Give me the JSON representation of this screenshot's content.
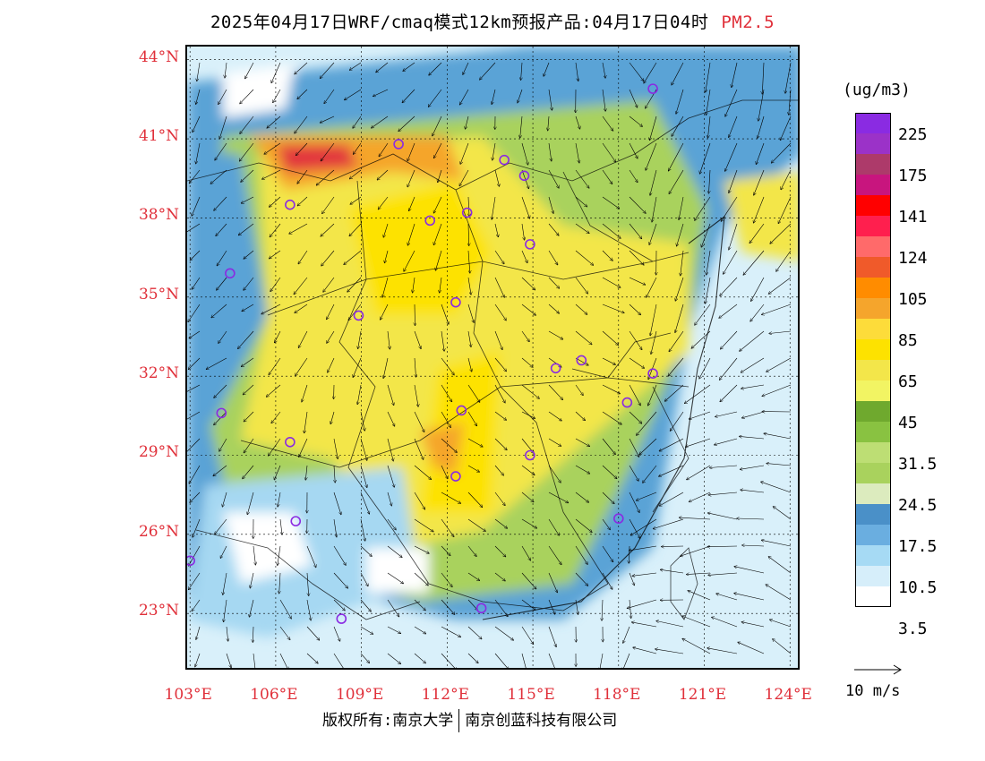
{
  "title": {
    "main": "2025年04月17日WRF/cmaq模式12km预报产品:04月17日04时",
    "variable": "PM2.5"
  },
  "map": {
    "lat_ticks": [
      "44°N",
      "41°N",
      "38°N",
      "35°N",
      "32°N",
      "29°N",
      "26°N",
      "23°N"
    ],
    "lon_ticks": [
      "103°E",
      "106°E",
      "109°E",
      "112°E",
      "115°E",
      "118°E",
      "121°E",
      "124°E"
    ],
    "lon_range": [
      102.9,
      124.4
    ],
    "lat_range": [
      20.8,
      44.5
    ],
    "hotspot_colors": {
      "land_high": "#f7f35a",
      "yellow_strong": "#fde200",
      "orange": "#f5a52c",
      "red": "#e2353c",
      "green_mid": "#a9d25d",
      "green_dark": "#6fb236",
      "blue_mid": "#5aa3d6",
      "blue_light": "#a6d8f2",
      "blue_pale": "#d9f0fa",
      "station_ring": "#8a2be2"
    }
  },
  "legend": {
    "unit": "(ug/m3)",
    "colors": [
      "#8a2be2",
      "#9b32c8",
      "#ad3a6a",
      "#c8157e",
      "#ff0000",
      "#ff1f4e",
      "#ff6a6a",
      "#f05a2a",
      "#ff8c00",
      "#f5a52c",
      "#fddc3a",
      "#fde200",
      "#f3e64a",
      "#f2f463",
      "#6fa92e",
      "#89c241",
      "#bdde74",
      "#a9d25d",
      "#dcebbe",
      "#4a90c8",
      "#6aaee0",
      "#a6daf4",
      "#d6eefa",
      "#ffffff"
    ],
    "labels": [
      "225",
      "175",
      "141",
      "124",
      "105",
      "85",
      "65",
      "45",
      "31.5",
      "24.5",
      "17.5",
      "10.5",
      "3.5"
    ]
  },
  "wind_reference": {
    "label": "10 m/s"
  },
  "stations": [
    [
      119.2,
      42.9
    ],
    [
      110.3,
      40.8
    ],
    [
      114.0,
      40.2
    ],
    [
      114.7,
      39.6
    ],
    [
      106.5,
      38.5
    ],
    [
      111.4,
      37.9
    ],
    [
      112.7,
      38.2
    ],
    [
      114.9,
      37.0
    ],
    [
      104.4,
      35.9
    ],
    [
      112.3,
      34.8
    ],
    [
      108.9,
      34.3
    ],
    [
      116.7,
      32.6
    ],
    [
      115.8,
      32.3
    ],
    [
      119.2,
      32.1
    ],
    [
      104.1,
      30.6
    ],
    [
      112.5,
      30.7
    ],
    [
      118.3,
      31.0
    ],
    [
      106.5,
      29.5
    ],
    [
      112.3,
      28.2
    ],
    [
      114.9,
      29.0
    ],
    [
      103.0,
      25.0
    ],
    [
      106.7,
      26.5
    ],
    [
      118.0,
      26.6
    ],
    [
      108.3,
      22.8
    ],
    [
      113.2,
      23.2
    ]
  ],
  "copyright": {
    "left": "版权所有:南京大学",
    "right": "南京创蓝科技有限公司"
  }
}
